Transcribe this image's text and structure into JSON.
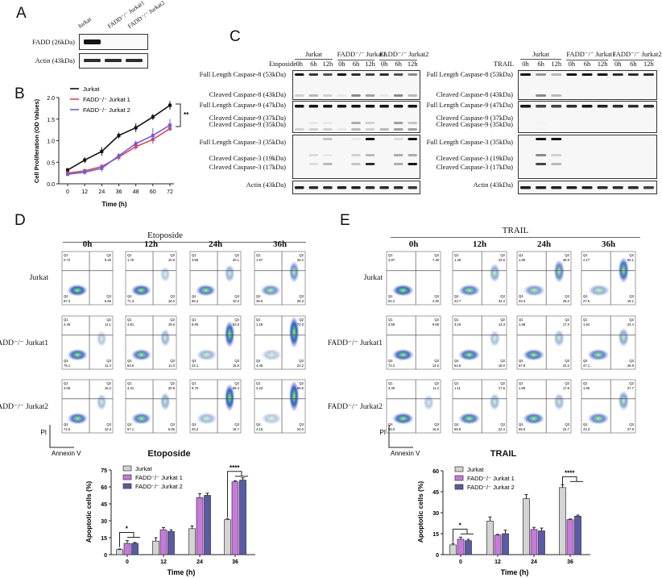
{
  "panels": {
    "a": "A",
    "b": "B",
    "c": "C",
    "d": "D",
    "e": "E"
  },
  "panel_a": {
    "columns": [
      "Jurkat",
      "FADD⁻/⁻ Jurkat1",
      "FADD⁻/⁻ Jurkat2"
    ],
    "rows": [
      {
        "label": "FADD (26kDa)",
        "band_intensity": [
          1,
          0,
          0
        ]
      },
      {
        "label": "Actin (43kDa)",
        "band_intensity": [
          0.9,
          0.9,
          0.9
        ]
      }
    ]
  },
  "panel_b": {
    "chart_data": {
      "type": "line",
      "xlabel": "Time (h)",
      "ylabel": "Cell Proliferation (OD Values)",
      "x": [
        0,
        12,
        24,
        36,
        48,
        60,
        72
      ],
      "xlim": [
        0,
        72
      ],
      "ylim": [
        0,
        2.0
      ],
      "yticks": [
        "0.0",
        "0.5",
        "1.0",
        "1.5",
        "2.0"
      ],
      "xticks": [
        "0",
        "12",
        "24",
        "36",
        "48",
        "60",
        "72"
      ],
      "legend": "top-left",
      "significance": "**",
      "series": [
        {
          "name": "Jurkat",
          "color": "#111111",
          "values": [
            0.32,
            0.55,
            0.75,
            1.12,
            1.3,
            1.55,
            1.82
          ],
          "err": [
            0.05,
            0.07,
            0.1,
            0.07,
            0.1,
            0.07,
            0.1
          ]
        },
        {
          "name": "FADD⁻/⁻ Jurkat 1",
          "color": "#e0474c",
          "values": [
            0.25,
            0.3,
            0.4,
            0.62,
            0.86,
            1.03,
            1.28
          ],
          "err": [
            0.04,
            0.05,
            0.06,
            0.08,
            0.07,
            0.1,
            0.06
          ]
        },
        {
          "name": "FADD⁻/⁻ Jurkat 2",
          "color": "#6b5ce7",
          "values": [
            0.22,
            0.27,
            0.36,
            0.65,
            0.93,
            1.12,
            1.36
          ],
          "err": [
            0.04,
            0.06,
            0.08,
            0.06,
            0.07,
            0.17,
            0.14
          ]
        }
      ]
    }
  },
  "panel_c": {
    "groups": [
      "Jurkat",
      "FADD⁻/⁻ Jurkat1",
      "FADD⁻/⁻ Jurkat2"
    ],
    "times": [
      "0h",
      "6h",
      "12h",
      "0h",
      "6h",
      "12h",
      "0h",
      "6h",
      "12h"
    ],
    "blots": [
      {
        "treatment": "Etoposide",
        "labels": [
          "Full Length Caspase-8 (53kDa)",
          "Cleaved Caspase-8 (43kDa)",
          "Full Length Caspase-9 (47kDa)",
          "Cleaved Caspase-9 (37kDa)",
          "Cleaved Caspase-9 (35kDa)",
          "Full Length Caspase-3 (35kDa)",
          "Cleaved Caspase-3 (19kDa)",
          "Cleaved Caspase-3 (17kDa)",
          "Actin (43kDa)"
        ],
        "band_intensity": [
          [
            1,
            0.85,
            0.75,
            1,
            0.9,
            0.8,
            0.9,
            0.75,
            0.5
          ],
          [
            0.2,
            0.3,
            0.2,
            0.1,
            0.5,
            0.4,
            0.1,
            0.5,
            0.3
          ],
          [
            1,
            1,
            1,
            1,
            1,
            1,
            1,
            1,
            1
          ],
          [
            0,
            0.1,
            0.1,
            0,
            0.35,
            0.2,
            0,
            0.4,
            0.25
          ],
          [
            0.2,
            0.2,
            0.2,
            0.1,
            0.3,
            0.2,
            0.3,
            0.4,
            0.4
          ],
          [
            0,
            0,
            0.25,
            0,
            0.1,
            1,
            0,
            0.15,
            1
          ],
          [
            0,
            0.15,
            0.1,
            0,
            0.2,
            0.3,
            0,
            0.35,
            0.35
          ],
          [
            0,
            0.15,
            0.3,
            0,
            0.25,
            0.9,
            0,
            0.35,
            1
          ],
          [
            0.95,
            0.9,
            0.9,
            0.95,
            0.95,
            0.9,
            0.9,
            0.9,
            0.85
          ]
        ]
      },
      {
        "treatment": "TRAIL",
        "labels": [
          "Full Length Caspase-8 (53kDa)",
          "Cleaved Caspase-8 (43kDa)",
          "Full Length Caspase-9 (47kDa)",
          "Cleaved Caspase-9 (37kDa)",
          "Cleaved Caspase-9 (35kDa)",
          "Full Length Caspase-3 (35kDa)",
          "Cleaved Caspase-3 (19kDa)",
          "Cleaved Caspase-3 (17kDa)",
          "Actin (43kDa)"
        ],
        "band_intensity": [
          [
            1,
            0.45,
            0.3,
            1,
            1,
            1,
            0.9,
            0.9,
            0.9
          ],
          [
            0,
            0.5,
            0.3,
            0,
            0,
            0,
            0,
            0,
            0
          ],
          [
            1,
            0.8,
            0.8,
            0.9,
            1,
            0.95,
            0.9,
            0.9,
            0.9
          ],
          [
            0,
            0.05,
            0.03,
            0,
            0,
            0,
            0,
            0,
            0
          ],
          [
            0,
            0.05,
            0.03,
            0,
            0,
            0,
            0,
            0,
            0
          ],
          [
            0,
            1,
            1,
            0,
            0,
            0,
            0,
            0,
            0
          ],
          [
            0,
            0.5,
            0.2,
            0,
            0,
            0,
            0,
            0,
            0
          ],
          [
            0,
            0.8,
            0.3,
            0,
            0,
            0,
            0,
            0,
            0
          ],
          [
            0.95,
            0.95,
            0.95,
            0.95,
            0.95,
            0.9,
            0.9,
            0.9,
            0.8
          ]
        ]
      }
    ]
  },
  "flow": {
    "times": [
      "0h",
      "12h",
      "24h",
      "36h"
    ],
    "rows": [
      "Jurkat",
      "FADD⁻/⁻ Jurkat1",
      "FADD⁻/⁻ Jurkat2"
    ],
    "y_axis": "PI",
    "x_axis": "Annexin V",
    "quadrant_names": [
      "Q1",
      "Q2",
      "Q3",
      "Q4"
    ],
    "panels": [
      {
        "treatment": "Etoposide",
        "values": [
          [
            {
              "Q1": "0.72",
              "Q2": "5.26",
              "Q3": "6.65",
              "Q4": "87.4"
            },
            {
              "Q1": "1.76",
              "Q2": "10.9",
              "Q3": "16.0",
              "Q4": "71.3"
            },
            {
              "Q1": "3.56",
              "Q2": "20.1",
              "Q3": "10.2",
              "Q4": "66.2"
            },
            {
              "Q1": "1.67",
              "Q2": "33.2",
              "Q3": "25.3",
              "Q4": "39.9"
            }
          ],
          [
            {
              "Q1": "2.49",
              "Q2": "11.1",
              "Q3": "11.4",
              "Q4": "75.1"
            },
            {
              "Q1": "4.81",
              "Q2": "19.5",
              "Q3": "11.0",
              "Q4": "64.8"
            },
            {
              "Q1": "8.60",
              "Q2": "53.5",
              "Q3": "15.9",
              "Q4": "22.1"
            },
            {
              "Q1": "1.25",
              "Q2": "72.0",
              "Q3": "22.2",
              "Q4": "4.45"
            }
          ],
          [
            {
              "Q1": "2.06",
              "Q2": "15.2",
              "Q3": "10.3",
              "Q4": "72.5"
            },
            {
              "Q1": "3.31",
              "Q2": "20.9",
              "Q3": "8.66",
              "Q4": "67.1"
            },
            {
              "Q1": "6.70",
              "Q2": "56.4",
              "Q3": "16.7",
              "Q4": "20.2"
            },
            {
              "Q1": "2.23",
              "Q2": "69.6",
              "Q3": "24.0",
              "Q4": "4.15"
            }
          ]
        ]
      },
      {
        "treatment": "TRAIL",
        "values": [
          [
            {
              "Q1": "3.97",
              "Q2": "7.48",
              "Q3": "4.30",
              "Q4": "84.2"
            },
            {
              "Q1": "1.48",
              "Q2": "23.6",
              "Q3": "32.3",
              "Q4": "42.7"
            },
            {
              "Q1": "1.80",
              "Q2": "38.9",
              "Q3": "26.0",
              "Q4": "33.4"
            },
            {
              "Q1": "4.17",
              "Q2": "50.1",
              "Q3": "18.1",
              "Q4": "27.6"
            }
          ],
          [
            {
              "Q1": "3.56",
              "Q2": "9.69",
              "Q3": "14.6",
              "Q4": "72.2"
            },
            {
              "Q1": "3.18",
              "Q2": "14.3",
              "Q3": "18.0",
              "Q4": "64.5"
            },
            {
              "Q1": "1.68",
              "Q2": "17.3",
              "Q3": "23.2",
              "Q4": "57.8"
            },
            {
              "Q1": "1.64",
              "Q2": "24.4",
              "Q3": "26.9",
              "Q4": "47.1"
            }
          ],
          [
            {
              "Q1": "3.30",
              "Q2": "11.2",
              "Q3": "16.5",
              "Q4": "69.0"
            },
            {
              "Q1": "1.11",
              "Q2": "17.6",
              "Q3": "22.4",
              "Q4": "58.9"
            },
            {
              "Q1": "1.95",
              "Q2": "17.8",
              "Q3": "24.7",
              "Q4": "55.5"
            },
            {
              "Q1": "1.66",
              "Q2": "27.7",
              "Q3": "27.9",
              "Q4": "43.3"
            }
          ]
        ]
      }
    ]
  },
  "chart_data": [
    {
      "type": "bar",
      "title": "Etoposide",
      "xlabel": "Time (h)",
      "ylabel": "Apoptotic cells (%)",
      "categories": [
        "0",
        "12",
        "24",
        "36"
      ],
      "ylim": [
        0,
        75
      ],
      "yticks": [
        "0",
        "15",
        "30",
        "45",
        "60",
        "75"
      ],
      "legend": "top-left",
      "significance": [
        {
          "category": "0",
          "label": "*"
        },
        {
          "category": "36",
          "label": "****"
        }
      ],
      "series": [
        {
          "name": "Jurkat",
          "color": "#d4d4d4",
          "values": [
            4.5,
            12,
            23,
            31
          ],
          "err": [
            0.5,
            3,
            2.5,
            1
          ]
        },
        {
          "name": "FADD⁻/⁻ Jurkat 1",
          "color": "#c978e0",
          "values": [
            10,
            22,
            50.5,
            64.5
          ],
          "err": [
            2.5,
            2,
            3.5,
            1
          ]
        },
        {
          "name": "FADD⁻/⁻ Jurkat 2",
          "color": "#5a5aa8",
          "values": [
            10,
            20.5,
            52.5,
            66
          ],
          "err": [
            0.8,
            1.5,
            2,
            2
          ]
        }
      ]
    },
    {
      "type": "bar",
      "title": "TRAIL",
      "xlabel": "Time (h)",
      "ylabel": "Apoptotic cells (%)",
      "categories": [
        "0",
        "12",
        "24",
        "36"
      ],
      "ylim": [
        0,
        60
      ],
      "yticks": [
        "0",
        "15",
        "30",
        "45",
        "60"
      ],
      "legend": "top-left",
      "significance": [
        {
          "category": "0",
          "label": "*"
        },
        {
          "category": "36",
          "label": "****"
        }
      ],
      "series": [
        {
          "name": "Jurkat",
          "color": "#d4d4d4",
          "values": [
            7,
            24,
            40,
            48
          ],
          "err": [
            1,
            3,
            3,
            2
          ]
        },
        {
          "name": "FADD⁻/⁻ Jurkat 1",
          "color": "#c978e0",
          "values": [
            11,
            14,
            18,
            25
          ],
          "err": [
            1.5,
            0.5,
            1.5,
            0.5
          ]
        },
        {
          "name": "FADD⁻/⁻ Jurkat 2",
          "color": "#5a5aa8",
          "values": [
            10,
            15,
            17,
            27.5
          ],
          "err": [
            1,
            2.5,
            2,
            0.8
          ]
        }
      ]
    }
  ]
}
